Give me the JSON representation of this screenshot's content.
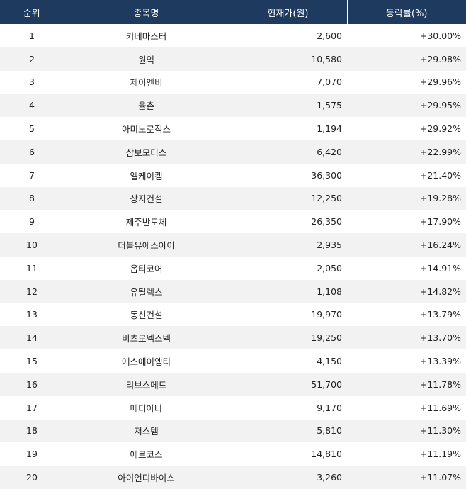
{
  "headers": {
    "rank": "순위",
    "name": "종목명",
    "price": "현재가(원)",
    "change": "등락률(%)"
  },
  "rows": [
    {
      "rank": "1",
      "name": "키네마스터",
      "price": "2,600",
      "change": "+30.00%"
    },
    {
      "rank": "2",
      "name": "원익",
      "price": "10,580",
      "change": "+29.98%"
    },
    {
      "rank": "3",
      "name": "제이엔비",
      "price": "7,070",
      "change": "+29.96%"
    },
    {
      "rank": "4",
      "name": "율촌",
      "price": "1,575",
      "change": "+29.95%"
    },
    {
      "rank": "5",
      "name": "아미노로직스",
      "price": "1,194",
      "change": "+29.92%"
    },
    {
      "rank": "6",
      "name": "삼보모터스",
      "price": "6,420",
      "change": "+22.99%"
    },
    {
      "rank": "7",
      "name": "엘케이켐",
      "price": "36,300",
      "change": "+21.40%"
    },
    {
      "rank": "8",
      "name": "상지건설",
      "price": "12,250",
      "change": "+19.28%"
    },
    {
      "rank": "9",
      "name": "제주반도체",
      "price": "26,350",
      "change": "+17.90%"
    },
    {
      "rank": "10",
      "name": "더블유에스아이",
      "price": "2,935",
      "change": "+16.24%"
    },
    {
      "rank": "11",
      "name": "옵티코어",
      "price": "2,050",
      "change": "+14.91%"
    },
    {
      "rank": "12",
      "name": "유틸렉스",
      "price": "1,108",
      "change": "+14.82%"
    },
    {
      "rank": "13",
      "name": "동신건설",
      "price": "19,970",
      "change": "+13.79%"
    },
    {
      "rank": "14",
      "name": "비츠로넥스텍",
      "price": "19,250",
      "change": "+13.70%"
    },
    {
      "rank": "15",
      "name": "에스에이엠티",
      "price": "4,150",
      "change": "+13.39%"
    },
    {
      "rank": "16",
      "name": "리브스메드",
      "price": "51,700",
      "change": "+11.78%"
    },
    {
      "rank": "17",
      "name": "메디아나",
      "price": "9,170",
      "change": "+11.69%"
    },
    {
      "rank": "18",
      "name": "저스템",
      "price": "5,810",
      "change": "+11.30%"
    },
    {
      "rank": "19",
      "name": "에르코스",
      "price": "14,810",
      "change": "+11.19%"
    },
    {
      "rank": "20",
      "name": "아이언디바이스",
      "price": "3,260",
      "change": "+11.07%"
    }
  ],
  "colors": {
    "header_bg": "#1f3a5f",
    "header_text": "#ffffff",
    "stripe_bg": "#f2f2f2"
  }
}
